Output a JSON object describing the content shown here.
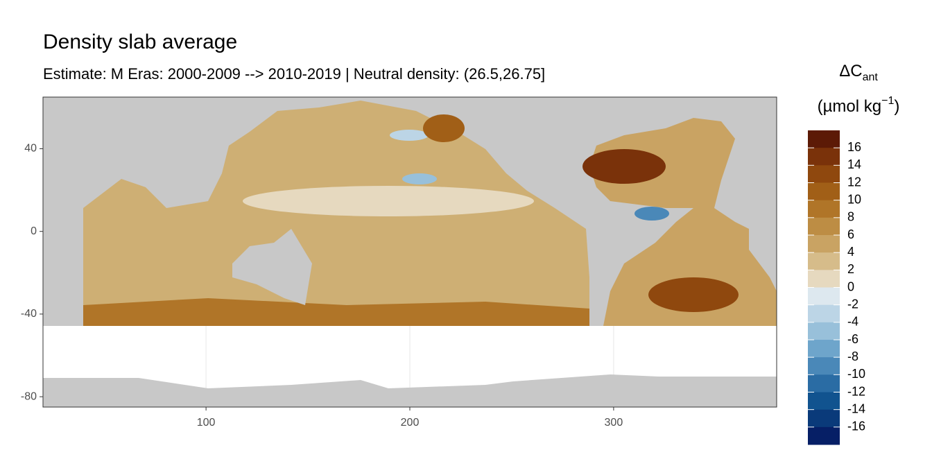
{
  "chart_data": {
    "type": "map",
    "title": "Density slab average",
    "subtitle": "Estimate: M Eras: 2000-2009 --> 2010-2019 | Neutral density: (26.5,26.75]",
    "xlim": [
      20,
      380
    ],
    "ylim": [
      -85,
      65
    ],
    "xticks": [
      100,
      200,
      300
    ],
    "yticks": [
      40,
      0,
      -40,
      -80
    ],
    "grid": true,
    "legend": {
      "title": "ΔC",
      "title_subscript": "ant",
      "unit": "(µmol kg",
      "unit_superscript": "−1",
      "unit_close": ")",
      "limits": [
        -18,
        18
      ],
      "breaks": [
        16,
        14,
        12,
        10,
        8,
        6,
        4,
        2,
        0,
        -2,
        -4,
        -6,
        -8,
        -10,
        -12,
        -14,
        -16
      ],
      "colors": [
        "#5c1a06",
        "#7a320a",
        "#8f480e",
        "#a15f17",
        "#b07528",
        "#bd8d44",
        "#c9a363",
        "#d6bc8a",
        "#e6d9bf",
        "#dde8ef",
        "#bcd5e6",
        "#98c0da",
        "#6ea5cb",
        "#4a88b8",
        "#2a6ca4",
        "#11538f",
        "#0a3a7a",
        "#061f66"
      ]
    }
  }
}
